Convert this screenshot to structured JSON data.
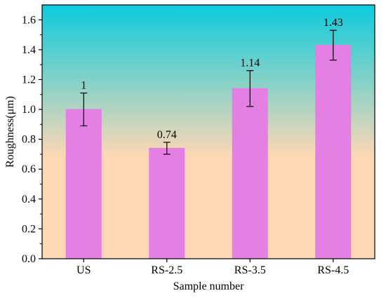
{
  "chart_data": {
    "type": "bar",
    "title": "",
    "xlabel": "Sample number",
    "ylabel": "Roughness(μm)",
    "categories": [
      "US",
      "RS-2.5",
      "RS-3.5",
      "RS-4.5"
    ],
    "values": [
      1.0,
      0.74,
      1.14,
      1.43
    ],
    "value_labels": [
      "1",
      "0.74",
      "1.14",
      "1.43"
    ],
    "error": [
      0.11,
      0.04,
      0.12,
      0.1
    ],
    "ylim": [
      0,
      1.7
    ],
    "yticks": [
      0.0,
      0.2,
      0.4,
      0.6,
      0.8,
      1.0,
      1.2,
      1.4,
      1.6
    ],
    "ytick_labels": [
      "0.0",
      "0.2",
      "0.4",
      "0.6",
      "0.8",
      "1.0",
      "1.2",
      "1.4",
      "1.6"
    ],
    "grid": false,
    "legend": "none",
    "colors": {
      "bar": "#e47fe4",
      "bar_edge": "#e27fe2",
      "background_top": "#0ccbdd",
      "background_bottom": "#fed8b4",
      "error_bar": "#000000",
      "axis": "#000000"
    }
  }
}
